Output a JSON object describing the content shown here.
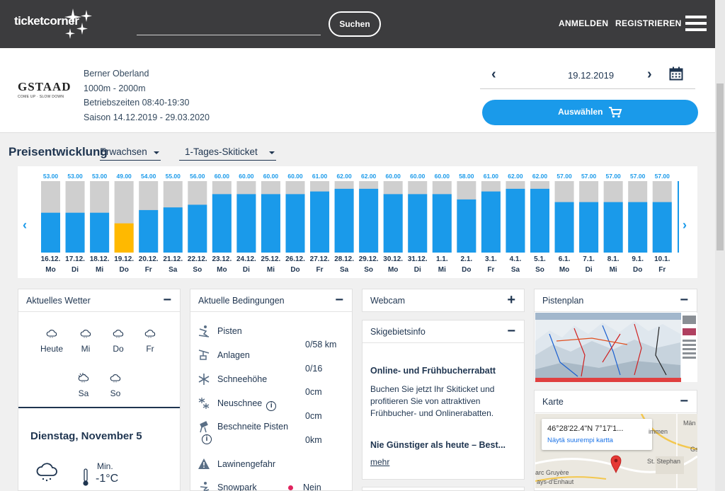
{
  "header": {
    "logo": "ticketcorner",
    "search_button": "Suchen",
    "login": "ANMELDEN",
    "register": "REGISTRIEREN"
  },
  "resort": {
    "name": "GSTAAD",
    "tagline": "COME UP · SLOW DOWN",
    "region": "Berner Oberland",
    "altitude": "1000m - 2000m",
    "hours": "Betriebszeiten 08:40-19:30",
    "season": "Saison 14.12.2019 - 29.03.2020",
    "selected_date": "19.12.2019",
    "select_button": "Auswählen"
  },
  "price": {
    "title": "Preisentwicklung",
    "category": "Erwachsen",
    "ticket_type": "1-Tages-Skiticket"
  },
  "chart_data": {
    "type": "bar",
    "categories": [
      "16.12.",
      "17.12.",
      "18.12.",
      "19.12.",
      "20.12.",
      "21.12.",
      "22.12.",
      "23.12.",
      "24.12.",
      "25.12.",
      "26.12.",
      "27.12.",
      "28.12.",
      "29.12.",
      "30.12.",
      "31.12.",
      "1.1.",
      "2.1.",
      "3.1.",
      "4.1.",
      "5.1.",
      "6.1.",
      "7.1.",
      "8.1.",
      "9.1.",
      "10.1."
    ],
    "weekdays": [
      "Mo",
      "Di",
      "Mi",
      "Do",
      "Fr",
      "Sa",
      "So",
      "Mo",
      "Di",
      "Mi",
      "Do",
      "Fr",
      "Sa",
      "So",
      "Mo",
      "Di",
      "Mi",
      "Do",
      "Fr",
      "Sa",
      "So",
      "Mo",
      "Di",
      "Mi",
      "Do",
      "Fr"
    ],
    "values": [
      53,
      53,
      53,
      49,
      54,
      55,
      56,
      60,
      60,
      60,
      60,
      61,
      62,
      62,
      60,
      60,
      60,
      58,
      61,
      62,
      62,
      57,
      57,
      57,
      57,
      57
    ],
    "labels": [
      "53.00",
      "53.00",
      "53.00",
      "49.00",
      "54.00",
      "55.00",
      "56.00",
      "60.00",
      "60.00",
      "60.00",
      "60.00",
      "61.00",
      "62.00",
      "62.00",
      "60.00",
      "60.00",
      "60.00",
      "58.00",
      "61.00",
      "62.00",
      "62.00",
      "57.00",
      "57.00",
      "57.00",
      "57.00",
      "57.00"
    ],
    "selected_index": 3,
    "colors": {
      "bar": "#1a9aea",
      "selected": "#ffb900",
      "track": "#cfcfcf",
      "label": "#1a9aea"
    }
  },
  "weather": {
    "title": "Aktuelles Wetter",
    "days": [
      "Heute",
      "Mi",
      "Do",
      "Fr",
      "Sa",
      "So"
    ],
    "date": "Dienstag, November 5",
    "min_label": "Min.",
    "min_value": "-1°C"
  },
  "conditions": {
    "title": "Aktuelle Bedingungen",
    "rows": [
      "Pisten",
      "Anlagen",
      "Schneehöhe",
      "Neuschnee",
      "Beschneite Pisten",
      "Lawinengefahr",
      "Snowpark"
    ],
    "values": [
      "0/58 km",
      "0/16",
      "0cm",
      "0cm",
      "0km"
    ],
    "snowpark_value": "Nein"
  },
  "webcam": {
    "title": "Webcam"
  },
  "skiinfo": {
    "title": "Skigebietsinfo",
    "heading": "Online- und Frühbucherrabatt",
    "body_1": "Buchen Sie jetzt Ihr Skiticket und",
    "body_2": "profitieren Sie von attraktiven",
    "body_3": "Frühbucher- und Onlinerabatten.",
    "subheading": "Nie Günstiger als heute – Best...",
    "more": "mehr"
  },
  "pistenplan": {
    "title": "Pistenplan"
  },
  "karte": {
    "title": "Karte",
    "coords": "46°28'22.4\"N 7°17'1...",
    "link": "Näytä suurempi kartta",
    "place_1": "immen",
    "place_2": "Män",
    "place_3": "Gs",
    "place_4": "St. Stephan",
    "place_5": "arc Gruyère",
    "place_6": "ays-d'Enhaut"
  }
}
